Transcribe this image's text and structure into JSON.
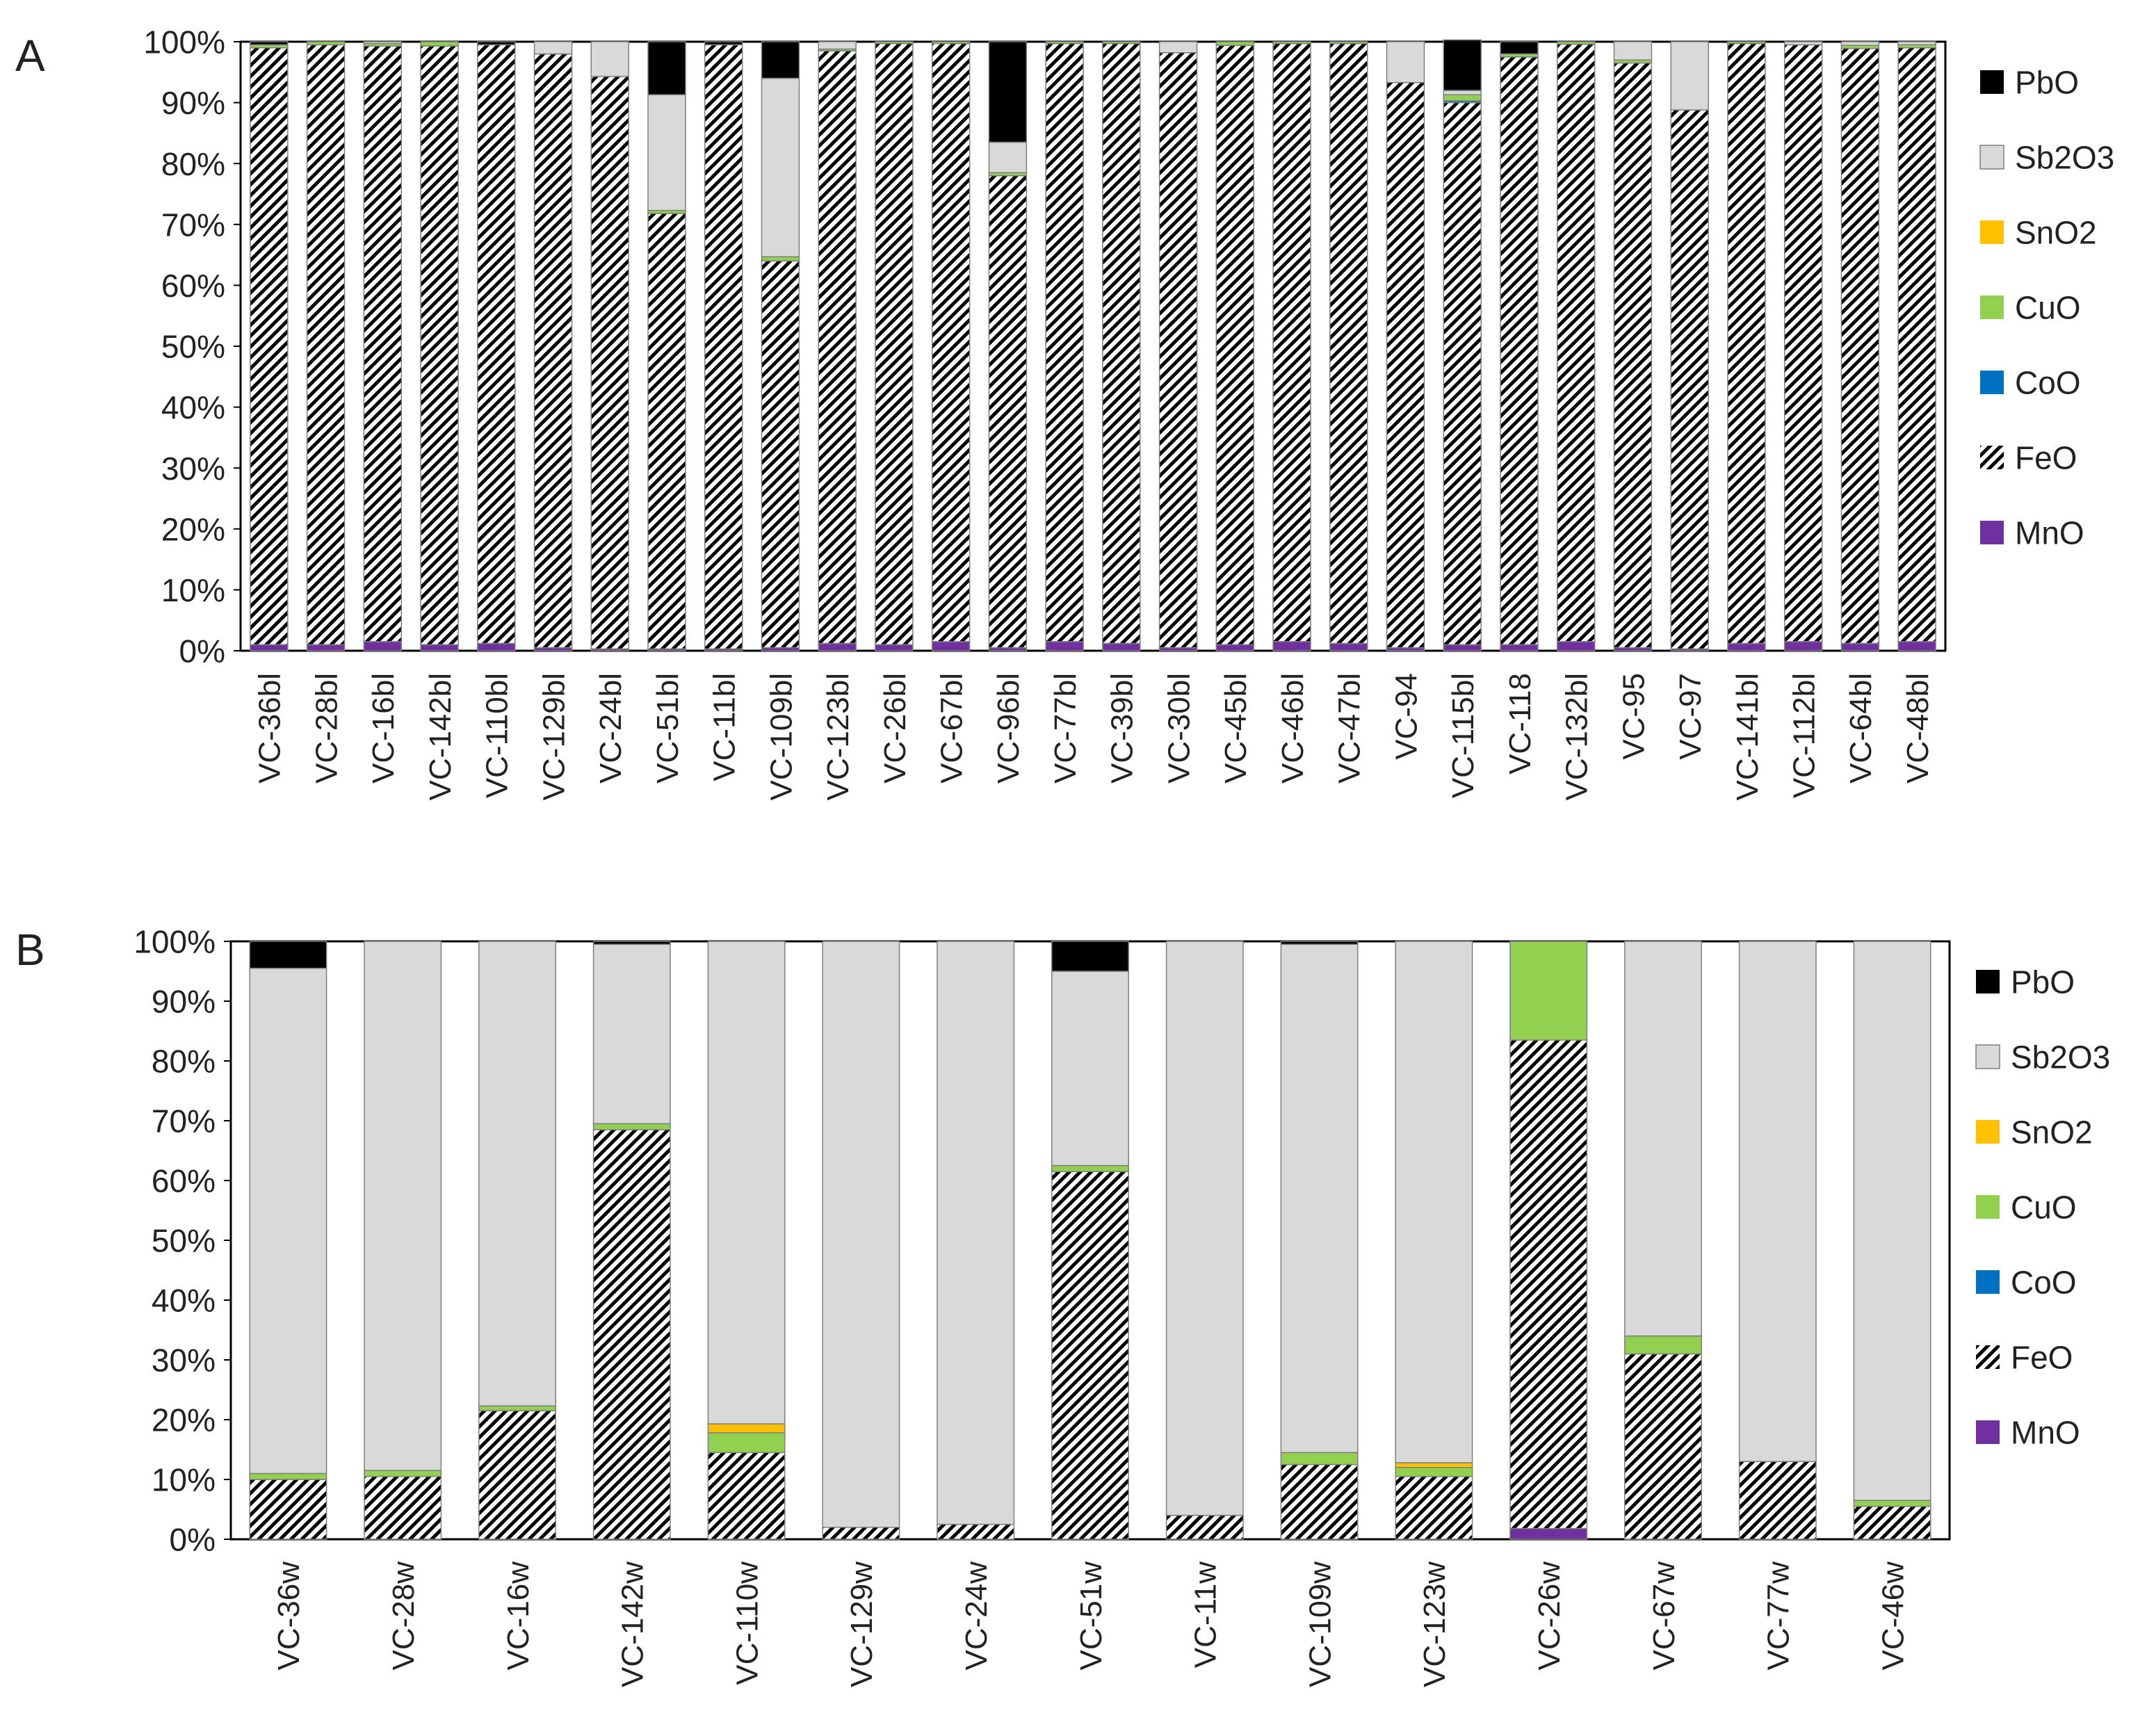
{
  "colors": {
    "PbO": "#000000",
    "Sb2O3": "#d9d9d9",
    "SnO2": "#ffc000",
    "CuO": "#92d050",
    "CoO": "#0070c0",
    "FeO": "hatch",
    "MnO": "#7030a0"
  },
  "chart_data": [
    {
      "type": "bar",
      "stacked": true,
      "panel_label": "A",
      "y_axis": {
        "ticks": [
          "0%",
          "10%",
          "20%",
          "30%",
          "40%",
          "50%",
          "60%",
          "70%",
          "80%",
          "90%",
          "100%"
        ],
        "ylim": [
          0,
          100
        ]
      },
      "legend": [
        "PbO",
        "Sb2O3",
        "SnO2",
        "CuO",
        "CoO",
        "FeO",
        "MnO"
      ],
      "categories": [
        "VC-36bl",
        "VC-28bl",
        "VC-16bl",
        "VC-142bl",
        "VC-110bl",
        "VC-129bl",
        "VC-24bl",
        "VC-51bl",
        "VC-11bl",
        "VC-109bl",
        "VC-123bl",
        "VC-26bl",
        "VC-67bl",
        "VC-96bl",
        "VC-77bl",
        "VC-39bl",
        "VC-30bl",
        "VC-45bl",
        "VC-46bl",
        "VC-47bl",
        "VC-94",
        "VC-115bl",
        "VC-118",
        "VC-132bl",
        "VC-95",
        "VC-97",
        "VC-141bl",
        "VC-112bl",
        "VC-64bl",
        "VC-48bl"
      ],
      "series": [
        {
          "name": "MnO",
          "values": [
            1.0,
            1.0,
            1.5,
            1.0,
            1.2,
            0.5,
            0.3,
            0.3,
            0.3,
            0.5,
            1.2,
            1.0,
            1.5,
            0.5,
            1.5,
            1.2,
            0.5,
            1.0,
            1.5,
            1.2,
            0.5,
            1.0,
            1.0,
            1.5,
            0.5,
            0.3,
            1.2,
            1.5,
            1.2,
            1.5
          ]
        },
        {
          "name": "FeO",
          "values": [
            98.0,
            98.5,
            97.8,
            98.3,
            98.3,
            97.5,
            94.0,
            71.5,
            99.2,
            63.5,
            97.3,
            98.7,
            98.2,
            77.5,
            98.2,
            98.5,
            97.7,
            98.4,
            98.2,
            98.5,
            92.8,
            89.0,
            96.5,
            98.1,
            96.0,
            88.5,
            98.5,
            98.0,
            97.7,
            97.5
          ]
        },
        {
          "name": "CoO",
          "values": [
            0,
            0,
            0,
            0,
            0,
            0,
            0,
            0,
            0,
            0,
            0,
            0,
            0,
            0,
            0,
            0,
            0,
            0,
            0,
            0,
            0,
            0.3,
            0,
            0,
            0,
            0,
            0,
            0,
            0,
            0
          ]
        },
        {
          "name": "CuO",
          "values": [
            0.5,
            0.5,
            0.4,
            0.7,
            0,
            0,
            0,
            0.5,
            0,
            0.7,
            0.3,
            0.3,
            0.3,
            0.5,
            0.3,
            0.3,
            0,
            0.6,
            0.3,
            0.3,
            0,
            1.0,
            0.5,
            0.4,
            0.5,
            0,
            0.3,
            0,
            0.5,
            0.5
          ]
        },
        {
          "name": "SnO2",
          "values": [
            0,
            0,
            0,
            0,
            0,
            0,
            0,
            0,
            0,
            0,
            0,
            0,
            0,
            0,
            0,
            0,
            0,
            0,
            0,
            0,
            0,
            0,
            0,
            0,
            0,
            0,
            0,
            0,
            0,
            0
          ]
        },
        {
          "name": "Sb2O3",
          "values": [
            0,
            0,
            0.3,
            0,
            0,
            2.0,
            5.7,
            19.0,
            0,
            29.3,
            1.2,
            0,
            0,
            5.0,
            0,
            0,
            1.8,
            0,
            0,
            0,
            6.7,
            0.7,
            0,
            0,
            3.0,
            11.2,
            0,
            0.5,
            0.6,
            0.5
          ]
        },
        {
          "name": "PbO",
          "values": [
            0.5,
            0,
            0,
            0,
            0.5,
            0,
            0,
            8.7,
            0.5,
            6.0,
            0,
            0,
            0,
            16.5,
            0,
            0,
            0,
            0,
            0,
            0,
            0,
            8.3,
            2.0,
            0,
            0,
            0,
            0,
            0,
            0,
            0
          ]
        }
      ]
    },
    {
      "type": "bar",
      "stacked": true,
      "panel_label": "B",
      "y_axis": {
        "ticks": [
          "0%",
          "10%",
          "20%",
          "30%",
          "40%",
          "50%",
          "60%",
          "70%",
          "80%",
          "90%",
          "100%"
        ],
        "ylim": [
          0,
          100
        ]
      },
      "legend": [
        "PbO",
        "Sb2O3",
        "SnO2",
        "CuO",
        "CoO",
        "FeO",
        "MnO"
      ],
      "categories": [
        "VC-36w",
        "VC-28w",
        "VC-16w",
        "VC-142w",
        "VC-110w",
        "VC-129w",
        "VC-24w",
        "VC-51w",
        "VC-11w",
        "VC-109w",
        "VC-123w",
        "VC-26w",
        "VC-67w",
        "VC-77w",
        "VC-46w"
      ],
      "series": [
        {
          "name": "MnO",
          "values": [
            0,
            0,
            0,
            0,
            0,
            0,
            0,
            0,
            0,
            0,
            0,
            1.8,
            0,
            0,
            0
          ]
        },
        {
          "name": "FeO",
          "values": [
            10.0,
            10.5,
            21.5,
            68.5,
            14.5,
            2.0,
            2.5,
            61.5,
            4.0,
            12.5,
            10.5,
            81.7,
            31.0,
            13.0,
            5.5
          ]
        },
        {
          "name": "CoO",
          "values": [
            0,
            0,
            0,
            0,
            0,
            0,
            0,
            0,
            0,
            0,
            0,
            0,
            0,
            0,
            0
          ]
        },
        {
          "name": "CuO",
          "values": [
            1.0,
            1.0,
            0.8,
            1.0,
            3.3,
            0,
            0,
            1.0,
            0,
            2.0,
            1.5,
            16.5,
            3.0,
            0,
            1.0
          ]
        },
        {
          "name": "SnO2",
          "values": [
            0,
            0,
            0,
            0,
            1.5,
            0,
            0,
            0,
            0,
            0,
            0.8,
            0,
            0,
            0,
            0
          ]
        },
        {
          "name": "Sb2O3",
          "values": [
            84.5,
            88.5,
            77.7,
            30.0,
            80.7,
            98.0,
            97.5,
            32.5,
            96.0,
            85.0,
            87.2,
            0,
            66.0,
            87.0,
            93.5
          ]
        },
        {
          "name": "PbO",
          "values": [
            4.5,
            0,
            0,
            0.5,
            0,
            0,
            0,
            5.0,
            0,
            0.5,
            0,
            0,
            0,
            0,
            0
          ]
        }
      ]
    }
  ]
}
